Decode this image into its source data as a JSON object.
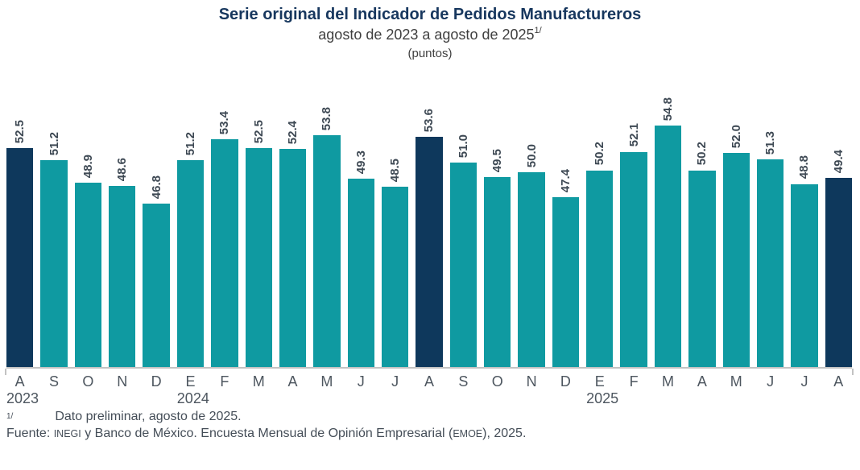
{
  "header": {
    "title": "Serie original del Indicador de Pedidos Manufactureros",
    "subtitle": "agosto de 2023 a agosto de 2025",
    "subtitle_superscript": "1/",
    "units": "(puntos)"
  },
  "chart_data": {
    "type": "bar",
    "title": "Serie original del Indicador de Pedidos Manufactureros",
    "subtitle": "agosto de 2023 a agosto de 2025 (puntos)",
    "categories": [
      "A",
      "S",
      "O",
      "N",
      "D",
      "E",
      "F",
      "M",
      "A",
      "M",
      "J",
      "J",
      "A",
      "S",
      "O",
      "N",
      "D",
      "E",
      "F",
      "M",
      "A",
      "M",
      "J",
      "J",
      "A"
    ],
    "values": [
      52.5,
      51.2,
      48.9,
      48.6,
      46.8,
      51.2,
      53.4,
      52.5,
      52.4,
      53.8,
      49.3,
      48.5,
      53.6,
      51.0,
      49.5,
      50.0,
      47.4,
      50.2,
      52.1,
      54.8,
      50.2,
      52.0,
      51.3,
      48.8,
      49.4
    ],
    "value_label_decimals": 1,
    "highlight_indices": [
      0,
      12,
      24
    ],
    "year_labels": [
      {
        "index": 0,
        "label": "2023"
      },
      {
        "index": 5,
        "label": "2024"
      },
      {
        "index": 17,
        "label": "2025"
      }
    ],
    "ylim": [
      30,
      56
    ],
    "grid": false,
    "legend_position": "none",
    "bar_color_default": "#0F9AA1",
    "bar_color_highlight": "#0E385C"
  },
  "colors": {
    "title": "#17375E",
    "subtitle": "#3F3F3F",
    "bar_teal": "#0F9AA1",
    "bar_navy": "#0E385C",
    "value_label": "#3E4954",
    "axis_line": "#C3C3C3",
    "month_label": "#4D565F",
    "footer_text": "#454E58"
  },
  "footnotes": {
    "note_marker": "1/",
    "note_text": "Dato preliminar, agosto de 2025.",
    "source_prefix": "Fuente: ",
    "source_small_1": "INEGI",
    "source_mid": " y Banco de México. Encuesta Mensual de Opinión Empresarial (",
    "source_small_2": "EMOE",
    "source_suffix": "), 2025."
  }
}
